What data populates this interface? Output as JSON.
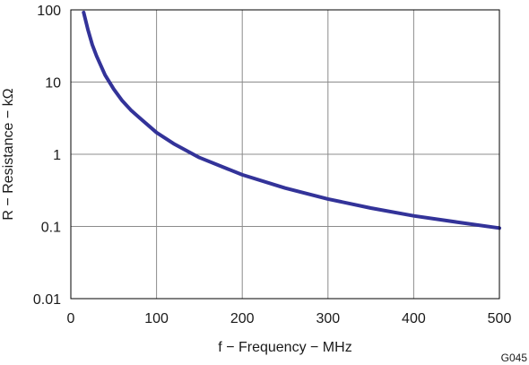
{
  "chart_data": {
    "type": "line",
    "title": "",
    "xlabel": "f − Frequency − MHz",
    "ylabel": "R − Resistance − kΩ",
    "figure_id": "G045",
    "x_scale": "linear",
    "y_scale": "log",
    "xlim": [
      0,
      500
    ],
    "ylim": [
      0.01,
      100
    ],
    "grid": true,
    "legend": "none",
    "x_ticks": [
      0,
      100,
      200,
      300,
      400,
      500
    ],
    "x_tick_labels": [
      "0",
      "100",
      "200",
      "300",
      "400",
      "500"
    ],
    "y_ticks": [
      0.01,
      0.1,
      1,
      10,
      100
    ],
    "y_tick_labels": [
      "0.01",
      "0.1",
      "1",
      "10",
      "100"
    ],
    "series": [
      {
        "color": "#333399",
        "x": [
          15,
          20,
          25,
          30,
          40,
          50,
          60,
          70,
          80,
          100,
          120,
          150,
          200,
          250,
          300,
          350,
          400,
          450,
          500
        ],
        "y": [
          92,
          53,
          33,
          23,
          12.5,
          8,
          5.5,
          4.1,
          3.2,
          2.0,
          1.4,
          0.9,
          0.52,
          0.34,
          0.24,
          0.18,
          0.14,
          0.115,
          0.095
        ]
      }
    ]
  }
}
